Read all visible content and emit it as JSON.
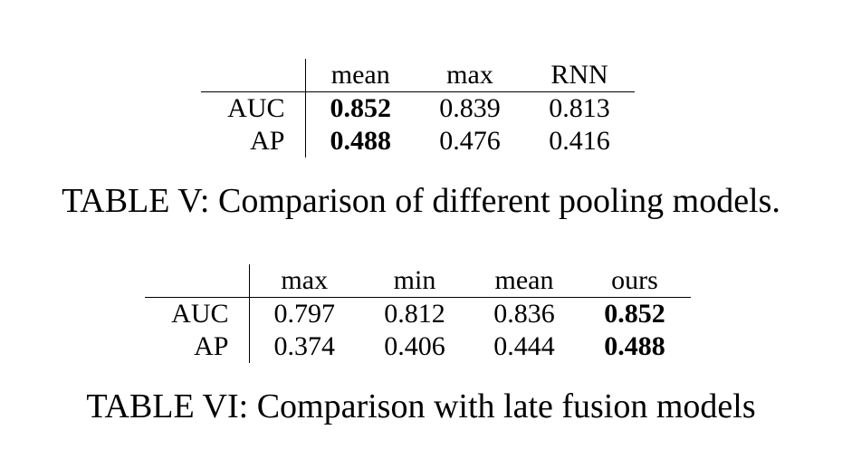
{
  "table_v": {
    "columns": [
      "mean",
      "max",
      "RNN"
    ],
    "rows": [
      {
        "label": "AUC",
        "values": [
          "0.852",
          "0.839",
          "0.813"
        ],
        "bold_index": 0
      },
      {
        "label": "AP",
        "values": [
          "0.488",
          "0.476",
          "0.416"
        ],
        "bold_index": 0
      }
    ],
    "caption": "TABLE V: Comparison of different pooling models."
  },
  "table_vi": {
    "columns": [
      "max",
      "min",
      "mean",
      "ours"
    ],
    "rows": [
      {
        "label": "AUC",
        "values": [
          "0.797",
          "0.812",
          "0.836",
          "0.852"
        ],
        "bold_index": 3
      },
      {
        "label": "AP",
        "values": [
          "0.374",
          "0.406",
          "0.444",
          "0.488"
        ],
        "bold_index": 3
      }
    ],
    "caption": "TABLE VI: Comparison with late fusion models"
  }
}
